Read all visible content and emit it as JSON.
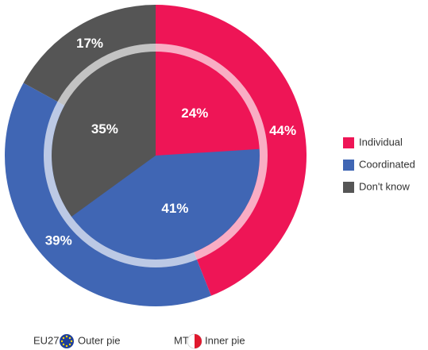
{
  "chart_data": {
    "type": "pie",
    "categories": [
      "Individual",
      "Coordinated",
      "Don't know"
    ],
    "colors": [
      "#ee1556",
      "#4066b4",
      "#555555"
    ],
    "series": [
      {
        "name": "EU27",
        "ring": "Outer pie",
        "values": [
          44,
          39,
          17
        ],
        "value_labels": [
          "44%",
          "39%",
          "17%"
        ]
      },
      {
        "name": "MT",
        "ring": "Inner pie",
        "values": [
          24,
          41,
          35
        ],
        "value_labels": [
          "24%",
          "41%",
          "35%"
        ]
      }
    ]
  }
}
